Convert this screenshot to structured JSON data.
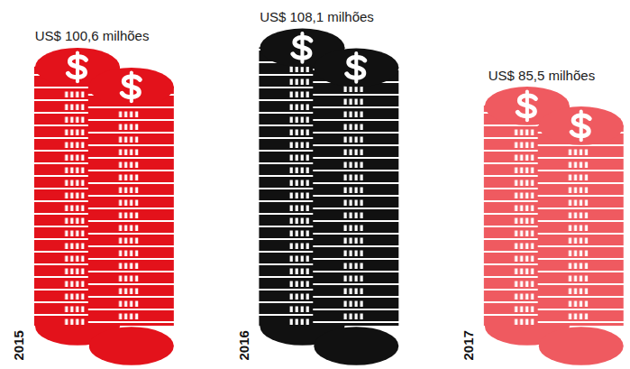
{
  "chart_data": {
    "type": "bar",
    "categories": [
      "2015",
      "2016",
      "2017"
    ],
    "values": [
      100.6,
      108.1,
      85.5
    ],
    "value_labels": [
      "US$ 100,6 milhões",
      "US$ 108,1 milhões",
      "US$ 85,5 milhões"
    ],
    "colors": [
      "#e3121b",
      "#111111",
      "#ef5a60"
    ],
    "data_labels": true,
    "tick_labels": "x",
    "ylim": [
      0,
      110
    ]
  }
}
